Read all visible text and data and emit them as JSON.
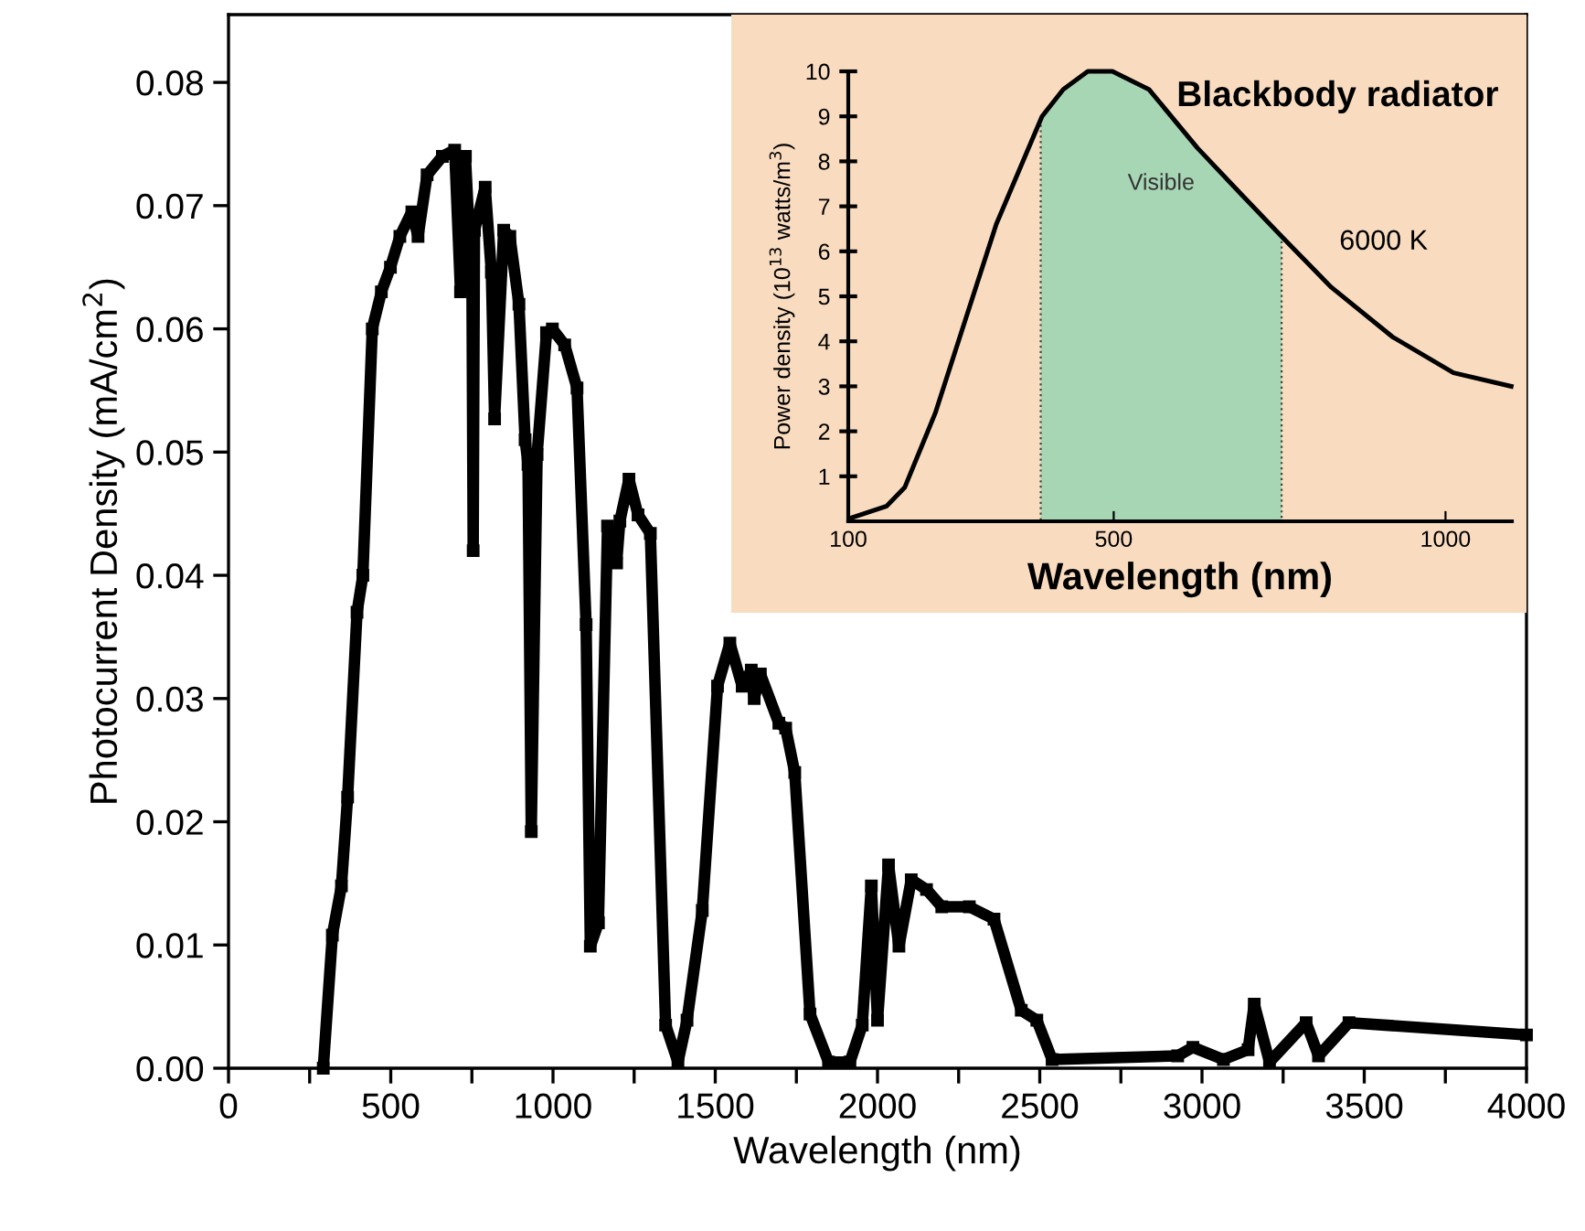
{
  "chart_data": [
    {
      "type": "line",
      "xlabel": "Wavelength (nm)",
      "ylabel": "Photocurrent Density (mA/cm$^{2}$)",
      "marker": "square",
      "line_style": "solid",
      "grid": false,
      "xlim": [
        0,
        4000
      ],
      "ylim": [
        0,
        0.0855
      ],
      "xticks": [
        0,
        {
          "value": 250,
          "label": null
        },
        500,
        {
          "value": 750,
          "label": null
        },
        1000,
        {
          "value": 1250,
          "label": null
        },
        1500,
        {
          "value": 1750,
          "label": null
        },
        2000,
        {
          "value": 2250,
          "label": null
        },
        2500,
        {
          "value": 2750,
          "label": null
        },
        3000,
        {
          "value": 3250,
          "label": null
        },
        3500,
        {
          "value": 3750,
          "label": null
        },
        4000
      ],
      "yticks": [
        {
          "value": 0,
          "label": "0.00"
        },
        {
          "value": 0.01,
          "label": "0.01"
        },
        {
          "value": 0.02,
          "label": "0.02"
        },
        {
          "value": 0.03,
          "label": "0.03"
        },
        {
          "value": 0.04,
          "label": "0.04"
        },
        {
          "value": 0.05,
          "label": "0.05"
        },
        {
          "value": 0.06,
          "label": "0.06"
        },
        {
          "value": 0.07,
          "label": "0.07"
        },
        {
          "value": 0.08,
          "label": "0.08"
        }
      ],
      "series": [
        {
          "color": "#000000",
          "x": [
            292,
            320,
            348,
            367,
            396,
            414,
            443,
            471,
            499,
            528,
            565,
            584,
            612,
            659,
            697,
            715,
            730,
            745,
            750,
            754,
            758,
            791,
            810,
            820,
            848,
            867,
            895,
            914,
            923,
            933,
            951,
            980,
            998,
            1036,
            1074,
            1102,
            1115,
            1140,
            1168,
            1196,
            1206,
            1234,
            1262,
            1300,
            1347,
            1385,
            1413,
            1460,
            1507,
            1545,
            1583,
            1611,
            1620,
            1639,
            1696,
            1717,
            1745,
            1792,
            1849,
            1915,
            1953,
            1981,
            2000,
            2034,
            2066,
            2104,
            2151,
            2198,
            2283,
            2359,
            2443,
            2491,
            2538,
            2925,
            2972,
            3066,
            3142,
            3161,
            3208,
            3321,
            3359,
            3453,
            4000
          ],
          "values": [
            0,
            0.0108,
            0.0148,
            0.022,
            0.037,
            0.04,
            0.06,
            0.063,
            0.065,
            0.0675,
            0.0695,
            0.0675,
            0.0725,
            0.074,
            0.0745,
            0.063,
            0.074,
            0.066,
            0.065,
            0.042,
            0.068,
            0.0715,
            0.0646,
            0.0527,
            0.068,
            0.0675,
            0.062,
            0.051,
            0.049,
            0.0192,
            0.0498,
            0.0597,
            0.06,
            0.0587,
            0.0552,
            0.036,
            0.0099,
            0.0118,
            0.044,
            0.041,
            0.0444,
            0.0478,
            0.0449,
            0.0434,
            0.0035,
            0.0005,
            0.0039,
            0.0128,
            0.031,
            0.0345,
            0.031,
            0.0323,
            0.03,
            0.032,
            0.028,
            0.0276,
            0.024,
            0.0044,
            0.0005,
            0.0005,
            0.0035,
            0.0148,
            0.0039,
            0.0165,
            0.0099,
            0.0153,
            0.0145,
            0.0131,
            0.0131,
            0.0121,
            0.0047,
            0.0039,
            0.0007,
            0.001,
            0.0017,
            0.0007,
            0.0015,
            0.0052,
            0.0005,
            0.0037,
            0.001,
            0.0037,
            0.0027
          ]
        }
      ]
    },
    {
      "type": "line",
      "title": "Blackbody radiator",
      "xlabel": "Wavelength (nm)",
      "ylabel": "Power density (10$^{13}$ watts/m$^{3}$)",
      "marker": "none",
      "line_style": "solid",
      "grid": false,
      "xlim": [
        100,
        1100
      ],
      "ylim": [
        0,
        10
      ],
      "xticks": [
        100,
        500,
        1000
      ],
      "yticks": [
        1,
        2,
        3,
        4,
        5,
        6,
        7,
        8,
        9,
        10
      ],
      "bands": [
        {
          "axis": "x",
          "from": 390,
          "to": 753,
          "label": "Visible"
        }
      ],
      "series": [
        {
          "name": "6000 K",
          "color": "#000000",
          "x": [
            103,
            158,
            185,
            231,
            277,
            323,
            369,
            392,
            424,
            461,
            498,
            553,
            626,
            690,
            755,
            828,
            920,
            1012,
            1099
          ],
          "values": [
            0.07,
            0.34,
            0.75,
            2.4,
            4.5,
            6.6,
            8.2,
            9.0,
            9.6,
            10,
            10,
            9.6,
            8.3,
            7.3,
            6.3,
            5.2,
            4.1,
            3.3,
            3.0
          ]
        }
      ]
    }
  ]
}
